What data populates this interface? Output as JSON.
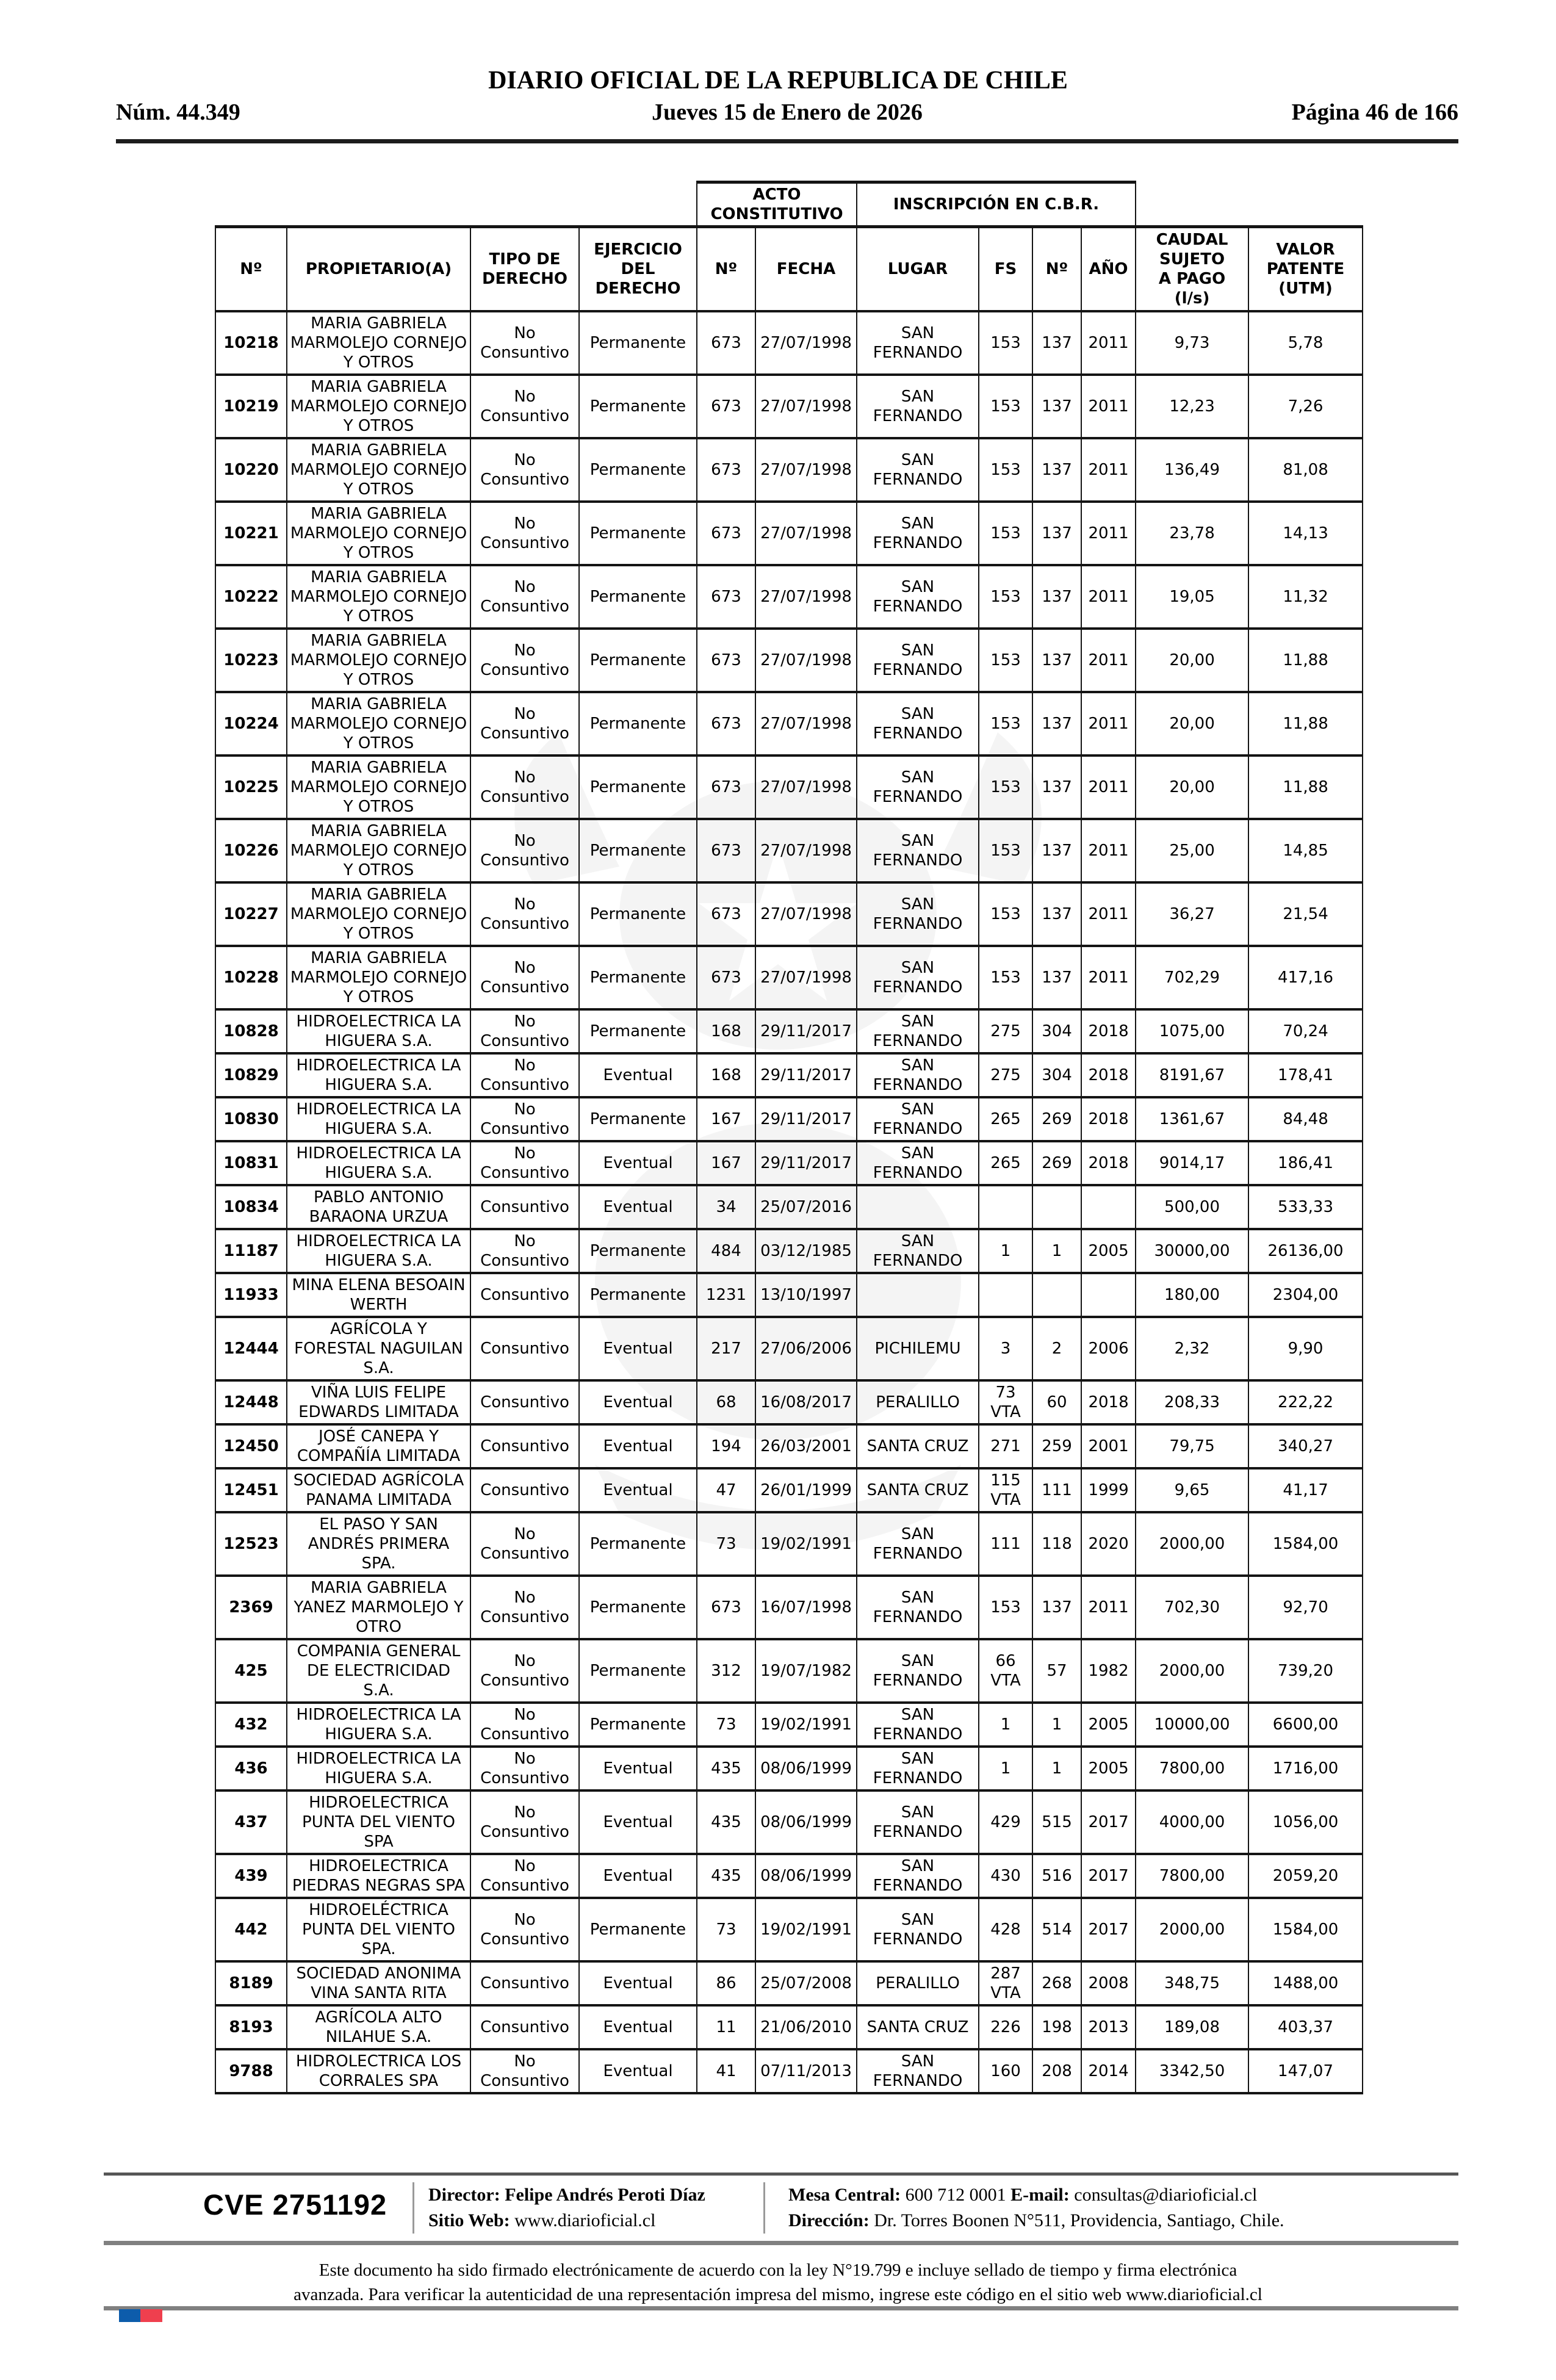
{
  "header": {
    "title": "DIARIO OFICIAL DE LA REPUBLICA DE CHILE",
    "num": "Núm. 44.349",
    "date": "Jueves 15 de Enero de 2026",
    "page": "Página 46 de 166"
  },
  "table": {
    "group_headers": {
      "acto": "ACTO CONSTITUTIVO",
      "inscripcion": "INSCRIPCIÓN EN C.B.R."
    },
    "columns": [
      "Nº",
      "PROPIETARIO(A)",
      "TIPO DE\nDERECHO",
      "EJERCICIO\nDEL\nDERECHO",
      "Nº",
      "FECHA",
      "LUGAR",
      "FS",
      "Nº",
      "AÑO",
      "CAUDAL\nSUJETO\nA PAGO\n(l/s)",
      "VALOR\nPATENTE\n(UTM)"
    ],
    "rows": [
      [
        "10218",
        "MARIA GABRIELA MARMOLEJO CORNEJO Y OTROS",
        "No Consuntivo",
        "Permanente",
        "673",
        "27/07/1998",
        "SAN FERNANDO",
        "153",
        "137",
        "2011",
        "9,73",
        "5,78"
      ],
      [
        "10219",
        "MARIA GABRIELA MARMOLEJO CORNEJO Y OTROS",
        "No Consuntivo",
        "Permanente",
        "673",
        "27/07/1998",
        "SAN FERNANDO",
        "153",
        "137",
        "2011",
        "12,23",
        "7,26"
      ],
      [
        "10220",
        "MARIA GABRIELA MARMOLEJO CORNEJO Y OTROS",
        "No Consuntivo",
        "Permanente",
        "673",
        "27/07/1998",
        "SAN FERNANDO",
        "153",
        "137",
        "2011",
        "136,49",
        "81,08"
      ],
      [
        "10221",
        "MARIA GABRIELA MARMOLEJO CORNEJO Y OTROS",
        "No Consuntivo",
        "Permanente",
        "673",
        "27/07/1998",
        "SAN FERNANDO",
        "153",
        "137",
        "2011",
        "23,78",
        "14,13"
      ],
      [
        "10222",
        "MARIA GABRIELA MARMOLEJO CORNEJO Y OTROS",
        "No Consuntivo",
        "Permanente",
        "673",
        "27/07/1998",
        "SAN FERNANDO",
        "153",
        "137",
        "2011",
        "19,05",
        "11,32"
      ],
      [
        "10223",
        "MARIA GABRIELA MARMOLEJO CORNEJO Y OTROS",
        "No Consuntivo",
        "Permanente",
        "673",
        "27/07/1998",
        "SAN FERNANDO",
        "153",
        "137",
        "2011",
        "20,00",
        "11,88"
      ],
      [
        "10224",
        "MARIA GABRIELA MARMOLEJO CORNEJO Y OTROS",
        "No Consuntivo",
        "Permanente",
        "673",
        "27/07/1998",
        "SAN FERNANDO",
        "153",
        "137",
        "2011",
        "20,00",
        "11,88"
      ],
      [
        "10225",
        "MARIA GABRIELA MARMOLEJO CORNEJO Y OTROS",
        "No Consuntivo",
        "Permanente",
        "673",
        "27/07/1998",
        "SAN FERNANDO",
        "153",
        "137",
        "2011",
        "20,00",
        "11,88"
      ],
      [
        "10226",
        "MARIA GABRIELA MARMOLEJO CORNEJO Y OTROS",
        "No Consuntivo",
        "Permanente",
        "673",
        "27/07/1998",
        "SAN FERNANDO",
        "153",
        "137",
        "2011",
        "25,00",
        "14,85"
      ],
      [
        "10227",
        "MARIA GABRIELA MARMOLEJO CORNEJO Y OTROS",
        "No Consuntivo",
        "Permanente",
        "673",
        "27/07/1998",
        "SAN FERNANDO",
        "153",
        "137",
        "2011",
        "36,27",
        "21,54"
      ],
      [
        "10228",
        "MARIA GABRIELA MARMOLEJO CORNEJO Y OTROS",
        "No Consuntivo",
        "Permanente",
        "673",
        "27/07/1998",
        "SAN FERNANDO",
        "153",
        "137",
        "2011",
        "702,29",
        "417,16"
      ],
      [
        "10828",
        "HIDROELECTRICA LA HIGUERA S.A.",
        "No Consuntivo",
        "Permanente",
        "168",
        "29/11/2017",
        "SAN FERNANDO",
        "275",
        "304",
        "2018",
        "1075,00",
        "70,24"
      ],
      [
        "10829",
        "HIDROELECTRICA LA HIGUERA S.A.",
        "No Consuntivo",
        "Eventual",
        "168",
        "29/11/2017",
        "SAN FERNANDO",
        "275",
        "304",
        "2018",
        "8191,67",
        "178,41"
      ],
      [
        "10830",
        "HIDROELECTRICA LA HIGUERA S.A.",
        "No Consuntivo",
        "Permanente",
        "167",
        "29/11/2017",
        "SAN FERNANDO",
        "265",
        "269",
        "2018",
        "1361,67",
        "84,48"
      ],
      [
        "10831",
        "HIDROELECTRICA LA HIGUERA S.A.",
        "No Consuntivo",
        "Eventual",
        "167",
        "29/11/2017",
        "SAN FERNANDO",
        "265",
        "269",
        "2018",
        "9014,17",
        "186,41"
      ],
      [
        "10834",
        "PABLO ANTONIO BARAONA URZUA",
        "Consuntivo",
        "Eventual",
        "34",
        "25/07/2016",
        "",
        "",
        "",
        "",
        "500,00",
        "533,33"
      ],
      [
        "11187",
        "HIDROELECTRICA LA HIGUERA S.A.",
        "No Consuntivo",
        "Permanente",
        "484",
        "03/12/1985",
        "SAN FERNANDO",
        "1",
        "1",
        "2005",
        "30000,00",
        "26136,00"
      ],
      [
        "11933",
        "MINA ELENA BESOAIN WERTH",
        "Consuntivo",
        "Permanente",
        "1231",
        "13/10/1997",
        "",
        "",
        "",
        "",
        "180,00",
        "2304,00"
      ],
      [
        "12444",
        "AGRÍCOLA Y FORESTAL NAGUILAN S.A.",
        "Consuntivo",
        "Eventual",
        "217",
        "27/06/2006",
        "PICHILEMU",
        "3",
        "2",
        "2006",
        "2,32",
        "9,90"
      ],
      [
        "12448",
        "VIÑA LUIS FELIPE EDWARDS LIMITADA",
        "Consuntivo",
        "Eventual",
        "68",
        "16/08/2017",
        "PERALILLO",
        "73 VTA",
        "60",
        "2018",
        "208,33",
        "222,22"
      ],
      [
        "12450",
        "JOSÉ CANEPA Y COMPAÑÍA LIMITADA",
        "Consuntivo",
        "Eventual",
        "194",
        "26/03/2001",
        "SANTA CRUZ",
        "271",
        "259",
        "2001",
        "79,75",
        "340,27"
      ],
      [
        "12451",
        "SOCIEDAD AGRÍCOLA PANAMA LIMITADA",
        "Consuntivo",
        "Eventual",
        "47",
        "26/01/1999",
        "SANTA CRUZ",
        "115 VTA",
        "111",
        "1999",
        "9,65",
        "41,17"
      ],
      [
        "12523",
        "EL PASO Y SAN ANDRÉS PRIMERA SPA.",
        "No Consuntivo",
        "Permanente",
        "73",
        "19/02/1991",
        "SAN FERNANDO",
        "111",
        "118",
        "2020",
        "2000,00",
        "1584,00"
      ],
      [
        "2369",
        "MARIA GABRIELA YANEZ MARMOLEJO Y OTRO",
        "No Consuntivo",
        "Permanente",
        "673",
        "16/07/1998",
        "SAN FERNANDO",
        "153",
        "137",
        "2011",
        "702,30",
        "92,70"
      ],
      [
        "425",
        "COMPANIA GENERAL DE ELECTRICIDAD S.A.",
        "No Consuntivo",
        "Permanente",
        "312",
        "19/07/1982",
        "SAN FERNANDO",
        "66 VTA",
        "57",
        "1982",
        "2000,00",
        "739,20"
      ],
      [
        "432",
        "HIDROELECTRICA LA HIGUERA S.A.",
        "No Consuntivo",
        "Permanente",
        "73",
        "19/02/1991",
        "SAN FERNANDO",
        "1",
        "1",
        "2005",
        "10000,00",
        "6600,00"
      ],
      [
        "436",
        "HIDROELECTRICA LA HIGUERA S.A.",
        "No Consuntivo",
        "Eventual",
        "435",
        "08/06/1999",
        "SAN FERNANDO",
        "1",
        "1",
        "2005",
        "7800,00",
        "1716,00"
      ],
      [
        "437",
        "HIDROELECTRICA PUNTA DEL VIENTO SPA",
        "No Consuntivo",
        "Eventual",
        "435",
        "08/06/1999",
        "SAN FERNANDO",
        "429",
        "515",
        "2017",
        "4000,00",
        "1056,00"
      ],
      [
        "439",
        "HIDROELECTRICA PIEDRAS NEGRAS SPA",
        "No Consuntivo",
        "Eventual",
        "435",
        "08/06/1999",
        "SAN FERNANDO",
        "430",
        "516",
        "2017",
        "7800,00",
        "2059,20"
      ],
      [
        "442",
        "HIDROELÉCTRICA PUNTA DEL VIENTO SPA.",
        "No Consuntivo",
        "Permanente",
        "73",
        "19/02/1991",
        "SAN FERNANDO",
        "428",
        "514",
        "2017",
        "2000,00",
        "1584,00"
      ],
      [
        "8189",
        "SOCIEDAD ANONIMA VINA SANTA RITA",
        "Consuntivo",
        "Eventual",
        "86",
        "25/07/2008",
        "PERALILLO",
        "287 VTA",
        "268",
        "2008",
        "348,75",
        "1488,00"
      ],
      [
        "8193",
        "AGRÍCOLA ALTO NILAHUE S.A.",
        "Consuntivo",
        "Eventual",
        "11",
        "21/06/2010",
        "SANTA CRUZ",
        "226",
        "198",
        "2013",
        "189,08",
        "403,37"
      ],
      [
        "9788",
        "HIDROLECTRICA LOS CORRALES SPA",
        "No Consuntivo",
        "Eventual",
        "41",
        "07/11/2013",
        "SAN FERNANDO",
        "160",
        "208",
        "2014",
        "3342,50",
        "147,07"
      ]
    ]
  },
  "footer": {
    "cve": "CVE 2751192",
    "director_label": "Director:",
    "director": "Felipe Andrés Peroti Díaz",
    "sitio_label": "Sitio Web:",
    "sitio": "www.diarioficial.cl",
    "mesa_label": "Mesa Central:",
    "mesa": "600 712 0001",
    "email_label": "E-mail:",
    "email": "consultas@diarioficial.cl",
    "direccion_label": "Dirección:",
    "direccion": "Dr. Torres Boonen N°511, Providencia, Santiago, Chile."
  },
  "legal": {
    "line1": "Este documento ha sido firmado electrónicamente de acuerdo con la ley N°19.799 e incluye sellado de tiempo y firma electrónica",
    "line2": "avanzada. Para verificar la autenticidad de una representación impresa del mismo, ingrese este código en el sitio web www.diarioficial.cl"
  },
  "colors": {
    "flag_blue": "#0d5cab",
    "flag_red": "#ef3f4e",
    "rule_gray": "#808080",
    "rule_dark": "#1d1d1d"
  }
}
